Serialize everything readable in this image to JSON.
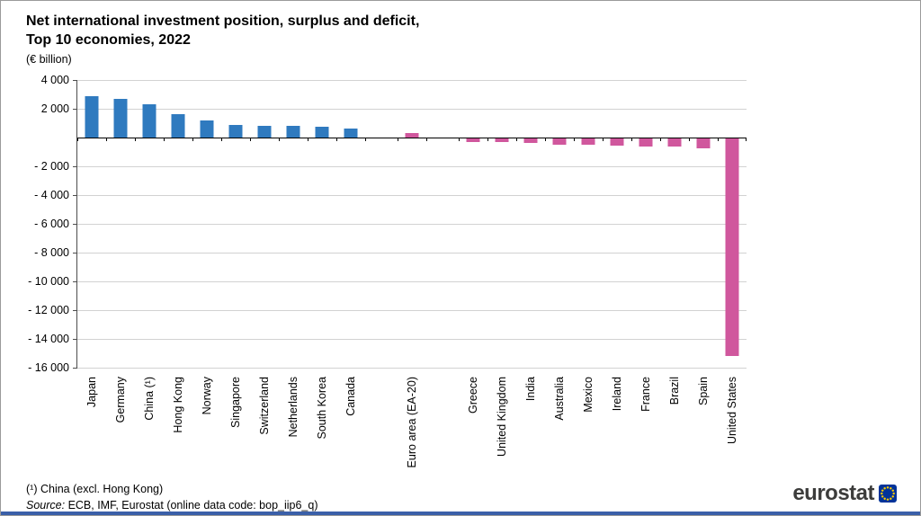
{
  "window": {
    "bottom_accent_color": "#3a5fa8"
  },
  "header": {
    "title_line1": "Net international investment position, surplus and deficit,",
    "title_line2": "Top 10 economies, 2022",
    "subtitle": "(€ billion)"
  },
  "chart_data": {
    "type": "bar",
    "title": "Net international investment position, surplus and deficit, Top 10 economies, 2022",
    "subtitle": "(€ billion)",
    "ylim": [
      -16000,
      4000
    ],
    "grid_step": 2000,
    "grid_on": true,
    "colors": {
      "surplus": "#2f7abf",
      "deficit": "#d0579d"
    },
    "yticks": [
      {
        "value": 4000,
        "label": "4 000"
      },
      {
        "value": 2000,
        "label": "2 000"
      },
      {
        "value": -2000,
        "label": "- 2 000"
      },
      {
        "value": -4000,
        "label": "- 4 000"
      },
      {
        "value": -6000,
        "label": "- 6 000"
      },
      {
        "value": -8000,
        "label": "- 8 000"
      },
      {
        "value": -10000,
        "label": "- 10 000"
      },
      {
        "value": -12000,
        "label": "- 12 000"
      },
      {
        "value": -14000,
        "label": "- 14 000"
      },
      {
        "value": -16000,
        "label": "- 16 000"
      }
    ],
    "groups": [
      {
        "name": "surplus-economies",
        "color": "#2f7abf",
        "items": [
          {
            "label": "Japan",
            "value": 2900
          },
          {
            "label": "Germany",
            "value": 2700
          },
          {
            "label": "China (¹)",
            "value": 2300
          },
          {
            "label": "Hong Kong",
            "value": 1650
          },
          {
            "label": "Norway",
            "value": 1200
          },
          {
            "label": "Singapore",
            "value": 900
          },
          {
            "label": "Switzerland",
            "value": 820
          },
          {
            "label": "Netherlands",
            "value": 800
          },
          {
            "label": "South Korea",
            "value": 750
          },
          {
            "label": "Canada",
            "value": 650
          }
        ]
      },
      {
        "name": "euro-area",
        "color": "#d0579d",
        "items": [
          {
            "label": "Euro area (EA-20)",
            "value": 300
          }
        ]
      },
      {
        "name": "deficit-economies",
        "color": "#d0579d",
        "items": [
          {
            "label": "Greece",
            "value": -300
          },
          {
            "label": "United Kingdom",
            "value": -320
          },
          {
            "label": "India",
            "value": -360
          },
          {
            "label": "Australia",
            "value": -480
          },
          {
            "label": "Mexico",
            "value": -500
          },
          {
            "label": "Ireland",
            "value": -560
          },
          {
            "label": "France",
            "value": -620
          },
          {
            "label": "Brazil",
            "value": -640
          },
          {
            "label": "Spain",
            "value": -720
          },
          {
            "label": "United States",
            "value": -15200
          }
        ]
      }
    ]
  },
  "footer": {
    "note1": "(¹) China (excl. Hong Kong)",
    "source_label": "Source:",
    "source_text": " ECB, IMF, Eurostat (online data code: bop_iip6_q)"
  },
  "logo": {
    "text": "eurostat",
    "flag_color": "#003399",
    "star_color": "#ffcc00"
  }
}
